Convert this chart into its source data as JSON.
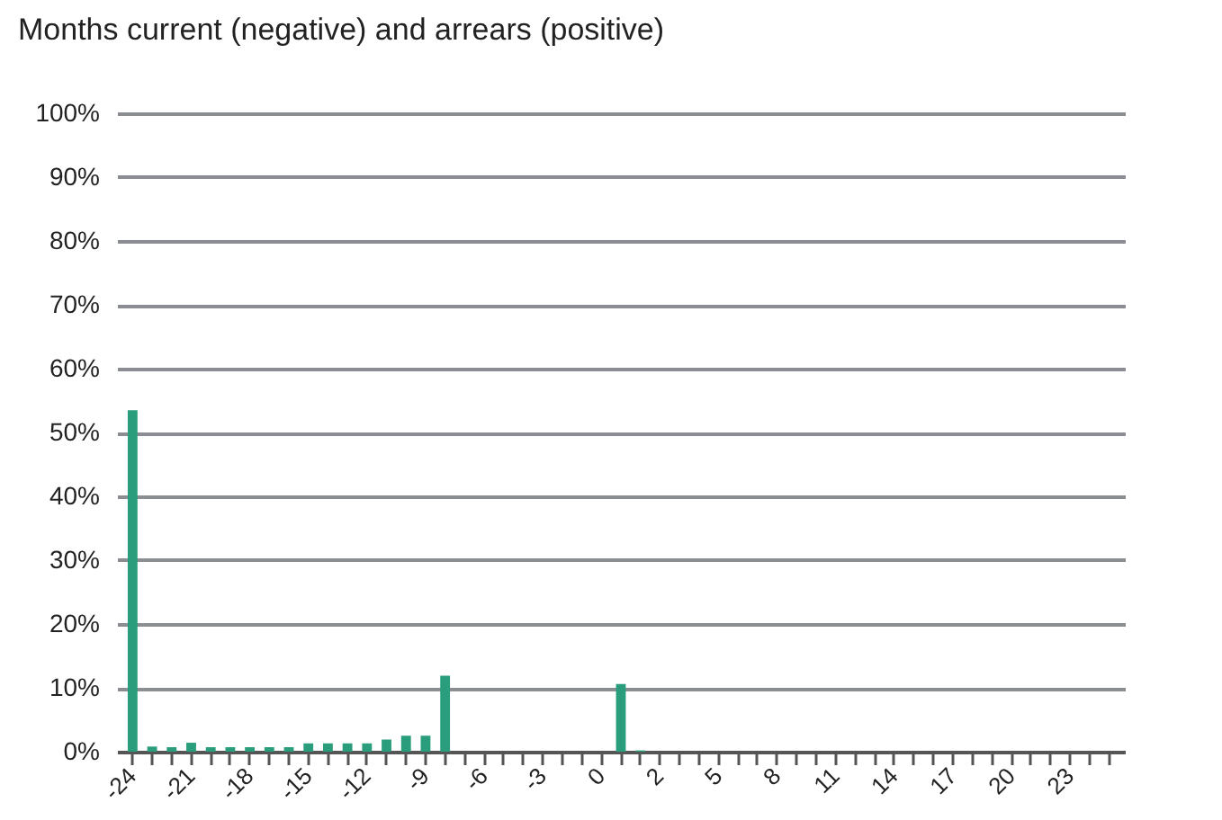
{
  "chart_data": {
    "type": "bar",
    "title": "Months current (negative) and arrears (positive)",
    "categories": [
      "-24",
      null,
      null,
      "-21",
      null,
      null,
      "-18",
      null,
      null,
      "-15",
      null,
      null,
      "-12",
      null,
      null,
      "-9",
      null,
      null,
      "-6",
      null,
      null,
      "-3",
      null,
      null,
      "0",
      null,
      null,
      "2",
      null,
      null,
      "5",
      null,
      null,
      "8",
      null,
      null,
      "11",
      null,
      null,
      "14",
      null,
      null,
      "17",
      null,
      null,
      "20",
      null,
      null,
      "23",
      null,
      null
    ],
    "values": [
      53.5,
      0.8,
      0.7,
      1.4,
      0.7,
      0.7,
      0.7,
      0.7,
      0.7,
      1.3,
      1.3,
      1.3,
      1.3,
      1.9,
      2.5,
      2.5,
      11.9,
      0,
      0,
      0,
      0,
      0,
      0,
      0,
      0,
      10.6,
      0.2,
      0,
      0,
      0,
      0,
      0,
      0,
      0,
      0,
      0,
      0,
      0,
      0,
      0,
      0,
      0,
      0,
      0,
      0,
      0,
      0,
      0,
      0,
      0,
      0
    ],
    "color": "#2a9d7c",
    "ylim": [
      0,
      100
    ],
    "yticks": [
      {
        "value": 0,
        "label": "0%"
      },
      {
        "value": 10,
        "label": "10%"
      },
      {
        "value": 20,
        "label": "20%"
      },
      {
        "value": 30,
        "label": "30%"
      },
      {
        "value": 40,
        "label": "40%"
      },
      {
        "value": 50,
        "label": "50%"
      },
      {
        "value": 60,
        "label": "60%"
      },
      {
        "value": 70,
        "label": "70%"
      },
      {
        "value": 80,
        "label": "80%"
      },
      {
        "value": 90,
        "label": "90%"
      },
      {
        "value": 100,
        "label": "100%"
      }
    ],
    "grid": "y"
  }
}
